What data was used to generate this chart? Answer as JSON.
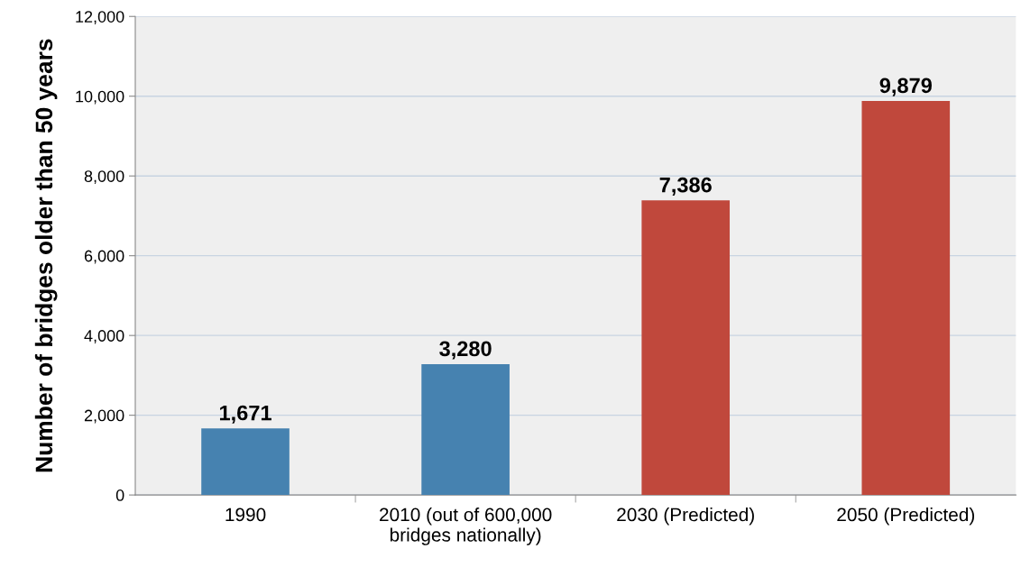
{
  "chart_data": {
    "type": "bar",
    "ylabel": "Number of bridges older than 50 years",
    "categories": [
      "1990",
      "2010 (out of 600,000\nbridges nationally)",
      "2030 (Predicted)",
      "2050 (Predicted)"
    ],
    "values": [
      1671,
      3280,
      7386,
      9879
    ],
    "colors": [
      "#4682b0",
      "#4682b0",
      "#c0483c",
      "#c0483c"
    ],
    "value_labels": [
      "1,671",
      "3,280",
      "7,386",
      "9,879"
    ],
    "ylim": [
      0,
      12000
    ],
    "yticks": [
      0,
      {
        "value": 2000,
        "label": "2,000"
      },
      {
        "value": 4000,
        "label": "4,000"
      },
      {
        "value": 6000,
        "label": "6,000"
      },
      {
        "value": 8000,
        "label": "8,000"
      },
      {
        "value": 10000,
        "label": "10,000"
      },
      {
        "value": 12000,
        "label": "12,000"
      }
    ],
    "grid": "y"
  }
}
